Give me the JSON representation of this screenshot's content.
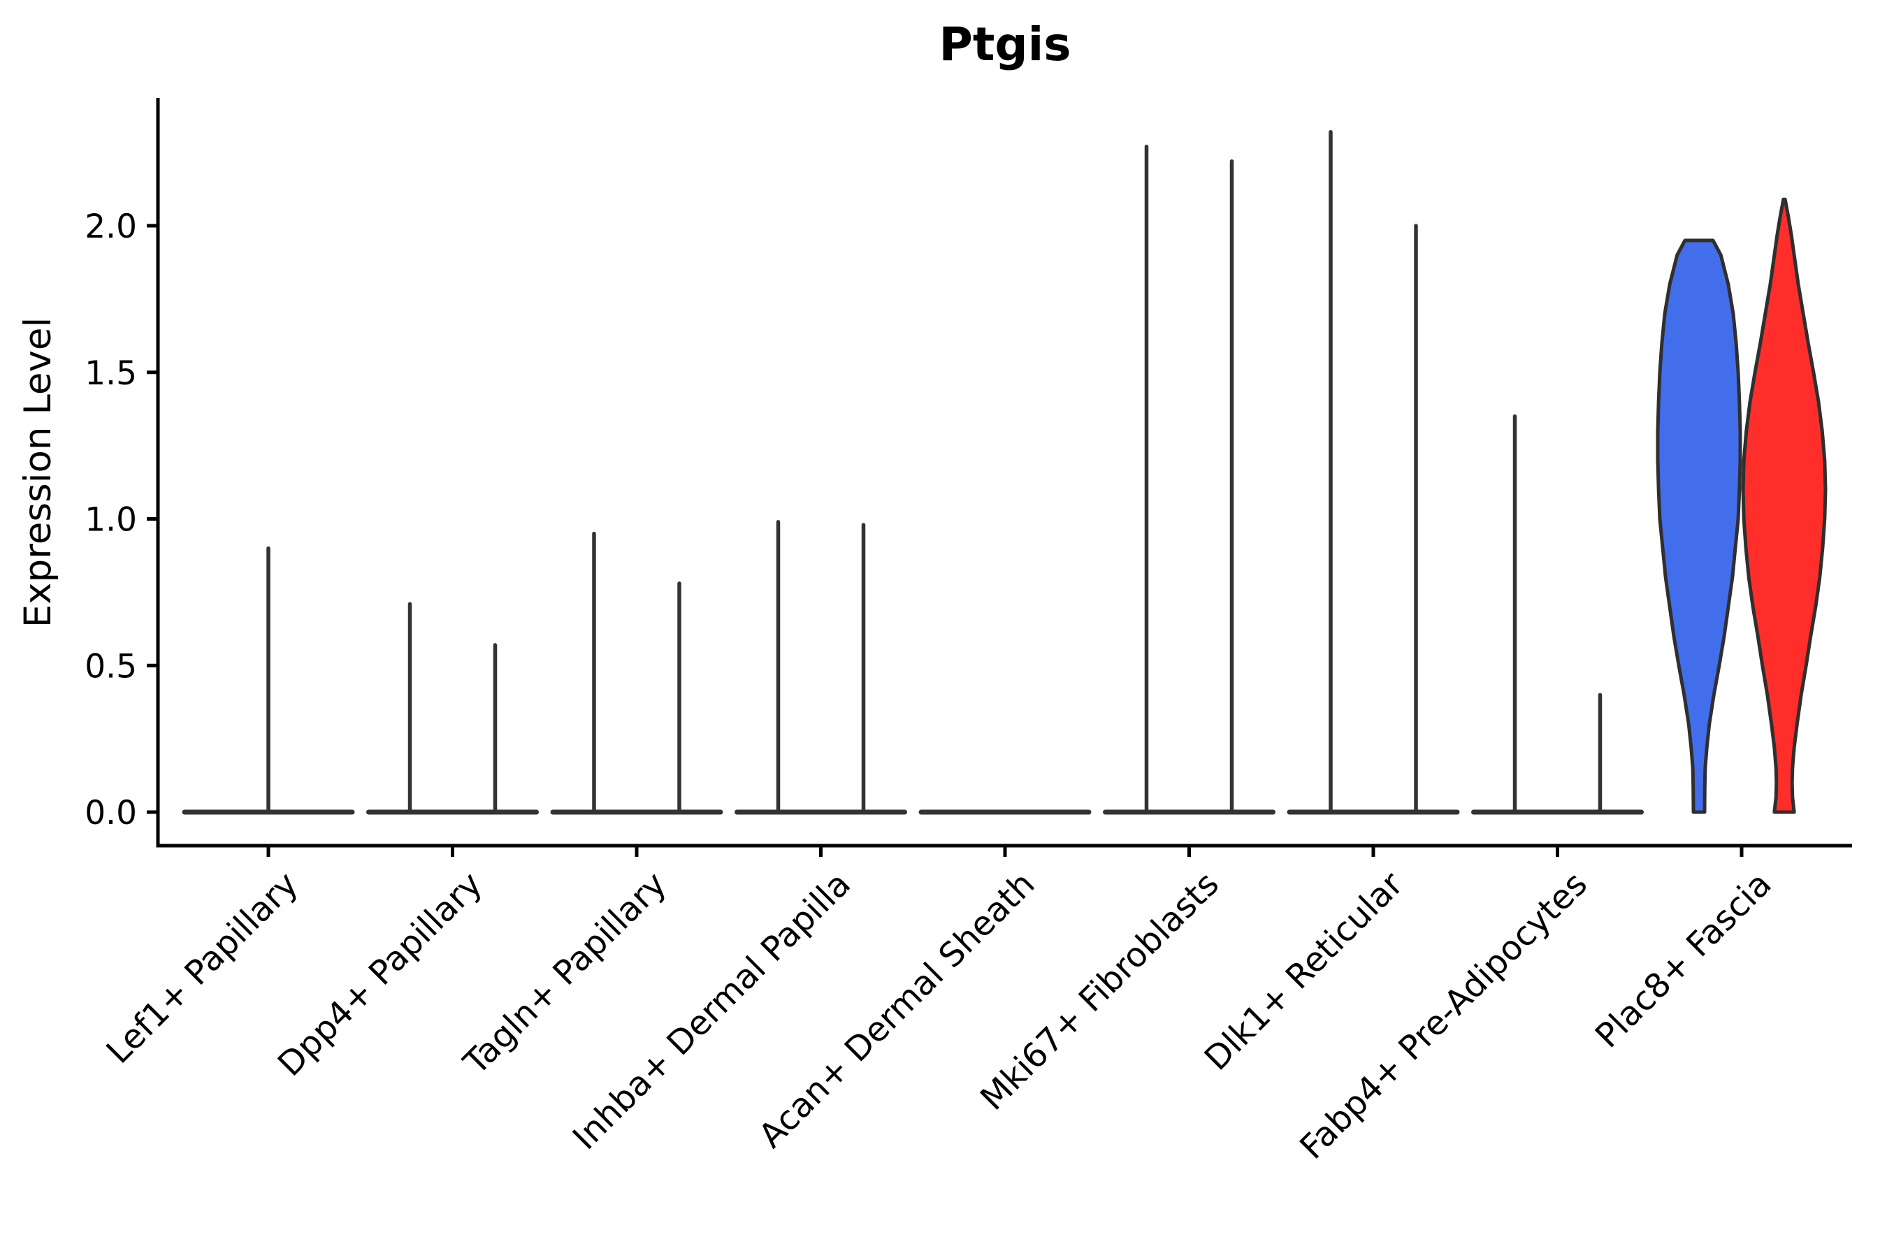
{
  "chart_data": {
    "type": "violin",
    "title": "Ptgis",
    "ylabel": "Expression Level",
    "xlabel": "",
    "ylim": [
      0.0,
      2.44
    ],
    "yticks": [
      0.0,
      0.5,
      1.0,
      1.5,
      2.0
    ],
    "ytick_labels": [
      "0.0",
      "0.5",
      "1.0",
      "1.5",
      "2.0"
    ],
    "grid": false,
    "legend": "none",
    "background_color": "#ffffff",
    "axis_color": "#000000",
    "violin_outline_color": "#2f2f2f",
    "baseline_color": "#333333",
    "split_fill_colors": {
      "left": "#436eeb",
      "right": "#ff2e2a"
    },
    "categories": [
      "Lef1+ Papillary",
      "Dpp4+ Papillary",
      "Tagln+ Papillary",
      "Inhba+ Dermal Papilla",
      "Acan+ Dermal Sheath",
      "Mki67+ Fibroblasts",
      "Dlk1+ Reticular",
      "Fabp4+ Pre-Adipocytes",
      "Plac8+ Fascia"
    ],
    "groups": [
      {
        "category": "Lef1+ Papillary",
        "baseline": true,
        "violins": [
          {
            "side": "center",
            "shape": "spike",
            "max": 0.9
          }
        ]
      },
      {
        "category": "Dpp4+ Papillary",
        "baseline": true,
        "violins": [
          {
            "side": "left",
            "shape": "spike",
            "max": 0.71
          },
          {
            "side": "right",
            "shape": "spike",
            "max": 0.57
          }
        ]
      },
      {
        "category": "Tagln+ Papillary",
        "baseline": true,
        "violins": [
          {
            "side": "left",
            "shape": "spike",
            "max": 0.95
          },
          {
            "side": "right",
            "shape": "spike",
            "max": 0.78
          }
        ]
      },
      {
        "category": "Inhba+ Dermal Papilla",
        "baseline": true,
        "violins": [
          {
            "side": "left",
            "shape": "spike",
            "max": 0.99
          },
          {
            "side": "right",
            "shape": "spike",
            "max": 0.98
          }
        ]
      },
      {
        "category": "Acan+ Dermal Sheath",
        "baseline": true,
        "violins": []
      },
      {
        "category": "Mki67+ Fibroblasts",
        "baseline": true,
        "violins": [
          {
            "side": "left",
            "shape": "spike",
            "max": 2.27
          },
          {
            "side": "right",
            "shape": "spike",
            "max": 2.22
          }
        ]
      },
      {
        "category": "Dlk1+ Reticular",
        "baseline": true,
        "violins": [
          {
            "side": "left",
            "shape": "spike",
            "max": 2.32
          },
          {
            "side": "right",
            "shape": "spike",
            "max": 2.0
          }
        ]
      },
      {
        "category": "Fabp4+ Pre-Adipocytes",
        "baseline": true,
        "violins": [
          {
            "side": "left",
            "shape": "spike",
            "max": 1.35
          },
          {
            "side": "right",
            "shape": "spike",
            "max": 0.4
          }
        ]
      },
      {
        "category": "Plac8+ Fascia",
        "baseline": false,
        "violins": [
          {
            "side": "left",
            "shape": "violin",
            "max": 1.95,
            "top": "flat",
            "fill": "#436eeb",
            "profile": [
              [
                1.95,
                0.34
              ],
              [
                1.9,
                0.53
              ],
              [
                1.8,
                0.71
              ],
              [
                1.7,
                0.83
              ],
              [
                1.6,
                0.9
              ],
              [
                1.5,
                0.95
              ],
              [
                1.4,
                0.98
              ],
              [
                1.3,
                1.0
              ],
              [
                1.2,
                1.0
              ],
              [
                1.1,
                0.98
              ],
              [
                1.0,
                0.95
              ],
              [
                0.9,
                0.88
              ],
              [
                0.8,
                0.81
              ],
              [
                0.7,
                0.71
              ],
              [
                0.6,
                0.61
              ],
              [
                0.5,
                0.49
              ],
              [
                0.4,
                0.36
              ],
              [
                0.3,
                0.25
              ],
              [
                0.22,
                0.19
              ],
              [
                0.15,
                0.15
              ],
              [
                0.08,
                0.14
              ],
              [
                0.0,
                0.135
              ]
            ]
          },
          {
            "side": "right",
            "shape": "violin",
            "max": 2.09,
            "top": "point",
            "fill": "#ff2e2a",
            "profile": [
              [
                2.09,
                0.02
              ],
              [
                2.03,
                0.1
              ],
              [
                1.97,
                0.17
              ],
              [
                1.9,
                0.24
              ],
              [
                1.8,
                0.34
              ],
              [
                1.7,
                0.46
              ],
              [
                1.6,
                0.58
              ],
              [
                1.5,
                0.71
              ],
              [
                1.4,
                0.83
              ],
              [
                1.3,
                0.92
              ],
              [
                1.2,
                0.98
              ],
              [
                1.1,
                1.0
              ],
              [
                1.0,
                0.98
              ],
              [
                0.9,
                0.93
              ],
              [
                0.8,
                0.86
              ],
              [
                0.7,
                0.76
              ],
              [
                0.6,
                0.64
              ],
              [
                0.5,
                0.53
              ],
              [
                0.4,
                0.41
              ],
              [
                0.3,
                0.31
              ],
              [
                0.22,
                0.24
              ],
              [
                0.15,
                0.2
              ],
              [
                0.1,
                0.19
              ],
              [
                0.05,
                0.2
              ],
              [
                0.0,
                0.24
              ]
            ]
          }
        ]
      }
    ]
  }
}
